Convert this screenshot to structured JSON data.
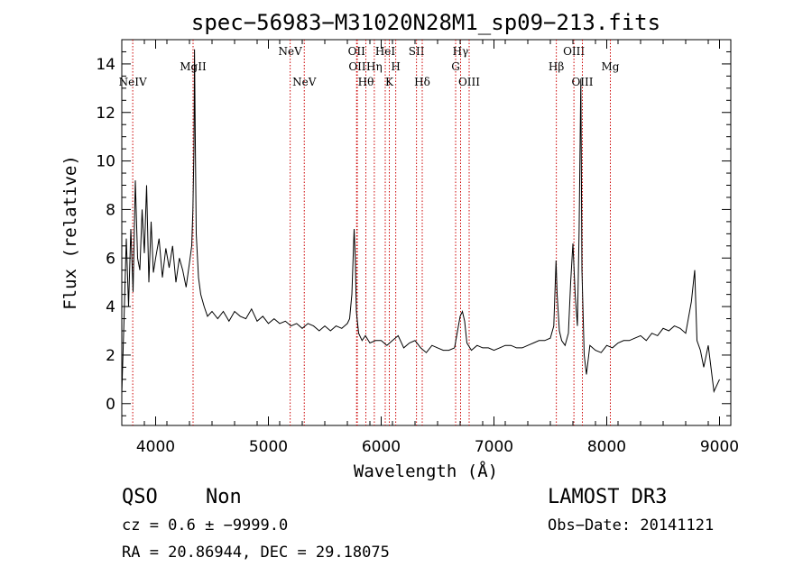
{
  "chart_data": {
    "type": "line",
    "title": "spec−56983−M31020N28M1_sp09−213.fits",
    "xlabel": "Wavelength (Å)",
    "ylabel": "Flux (relative)",
    "xlim": [
      3700,
      9100
    ],
    "ylim": [
      -0.9,
      15.0
    ],
    "xticks": [
      4000,
      5000,
      6000,
      7000,
      8000,
      9000
    ],
    "xtick_labels": [
      "4000",
      "5000",
      "6000",
      "7000",
      "8000",
      "9000"
    ],
    "yticks": [
      0,
      2,
      4,
      6,
      8,
      10,
      12,
      14
    ],
    "ytick_labels": [
      "0",
      "2",
      "4",
      "6",
      "8",
      "10",
      "12",
      "14"
    ],
    "series": [
      {
        "name": "spectrum",
        "x": [
          3700,
          3720,
          3740,
          3760,
          3780,
          3800,
          3820,
          3840,
          3860,
          3880,
          3900,
          3920,
          3940,
          3960,
          3980,
          4000,
          4030,
          4060,
          4090,
          4120,
          4150,
          4180,
          4210,
          4240,
          4270,
          4300,
          4320,
          4330,
          4340,
          4345,
          4350,
          4360,
          4380,
          4400,
          4430,
          4460,
          4500,
          4550,
          4600,
          4650,
          4700,
          4750,
          4800,
          4850,
          4900,
          4950,
          5000,
          5050,
          5100,
          5150,
          5200,
          5250,
          5300,
          5350,
          5400,
          5450,
          5500,
          5550,
          5600,
          5650,
          5700,
          5720,
          5740,
          5760,
          5770,
          5780,
          5800,
          5830,
          5860,
          5900,
          5950,
          6000,
          6050,
          6100,
          6150,
          6200,
          6250,
          6300,
          6350,
          6400,
          6450,
          6500,
          6550,
          6600,
          6650,
          6700,
          6720,
          6740,
          6760,
          6800,
          6850,
          6900,
          6950,
          7000,
          7050,
          7100,
          7150,
          7200,
          7250,
          7300,
          7350,
          7400,
          7450,
          7500,
          7530,
          7550,
          7560,
          7580,
          7600,
          7630,
          7660,
          7680,
          7700,
          7720,
          7740,
          7755,
          7770,
          7780,
          7800,
          7820,
          7850,
          7900,
          7950,
          8000,
          8050,
          8100,
          8150,
          8200,
          8250,
          8300,
          8350,
          8400,
          8450,
          8500,
          8550,
          8600,
          8650,
          8700,
          8750,
          8780,
          8800,
          8830,
          8860,
          8900,
          8950,
          9000
        ],
        "y": [
          0.4,
          3.5,
          6.8,
          4.0,
          7.2,
          4.6,
          9.2,
          6.0,
          5.5,
          8.0,
          6.2,
          9.0,
          5.0,
          7.5,
          5.4,
          6.0,
          6.8,
          5.2,
          6.4,
          5.6,
          6.5,
          5.0,
          6.0,
          5.5,
          4.8,
          5.8,
          6.5,
          8.0,
          10.5,
          14.6,
          11.5,
          7.0,
          5.2,
          4.5,
          4.0,
          3.6,
          3.8,
          3.5,
          3.8,
          3.4,
          3.8,
          3.6,
          3.5,
          3.9,
          3.4,
          3.6,
          3.3,
          3.5,
          3.3,
          3.4,
          3.2,
          3.3,
          3.1,
          3.3,
          3.2,
          3.0,
          3.2,
          3.0,
          3.2,
          3.1,
          3.3,
          3.5,
          4.5,
          7.2,
          6.0,
          3.8,
          2.9,
          2.6,
          2.8,
          2.5,
          2.6,
          2.6,
          2.4,
          2.6,
          2.8,
          2.3,
          2.5,
          2.6,
          2.3,
          2.1,
          2.4,
          2.3,
          2.2,
          2.2,
          2.3,
          3.6,
          3.8,
          3.4,
          2.5,
          2.2,
          2.4,
          2.3,
          2.3,
          2.2,
          2.3,
          2.4,
          2.4,
          2.3,
          2.3,
          2.4,
          2.5,
          2.6,
          2.6,
          2.7,
          3.2,
          5.9,
          4.5,
          3.0,
          2.6,
          2.4,
          2.9,
          5.0,
          6.6,
          4.5,
          3.2,
          7.2,
          13.4,
          5.5,
          2.0,
          1.2,
          2.4,
          2.2,
          2.1,
          2.4,
          2.3,
          2.5,
          2.6,
          2.6,
          2.7,
          2.8,
          2.6,
          2.9,
          2.8,
          3.1,
          3.0,
          3.2,
          3.1,
          2.9,
          4.2,
          5.5,
          2.6,
          2.2,
          1.5,
          2.4,
          0.5,
          1.0
        ]
      }
    ],
    "line_markers": [
      {
        "label": "NeIV",
        "x": 3797,
        "row": "low"
      },
      {
        "label": "MgII",
        "x": 4332,
        "row": "mid"
      },
      {
        "label": "NeV",
        "x": 5193,
        "row": "top"
      },
      {
        "label": "NeV",
        "x": 5318,
        "row": "low"
      },
      {
        "label": "OII",
        "x": 5782,
        "row": "top"
      },
      {
        "label": "OII",
        "x": 5788,
        "row": "mid"
      },
      {
        "label": "Hθ",
        "x": 5864,
        "row": "low"
      },
      {
        "label": "Hη",
        "x": 5939,
        "row": "mid"
      },
      {
        "label": "HeI",
        "x": 6036,
        "row": "top"
      },
      {
        "label": "K",
        "x": 6072,
        "row": "low"
      },
      {
        "label": "H",
        "x": 6129,
        "row": "mid"
      },
      {
        "label": "SII",
        "x": 6313,
        "row": "top"
      },
      {
        "label": "Hδ",
        "x": 6364,
        "row": "low"
      },
      {
        "label": "G",
        "x": 6660,
        "row": "mid"
      },
      {
        "label": "Hγ",
        "x": 6704,
        "row": "top"
      },
      {
        "label": "OIII",
        "x": 6780,
        "row": "low"
      },
      {
        "label": "Hβ",
        "x": 7553,
        "row": "mid"
      },
      {
        "label": "OIII",
        "x": 7709,
        "row": "top"
      },
      {
        "label": "OIII",
        "x": 7784,
        "row": "low"
      },
      {
        "label": "Mg",
        "x": 8032,
        "row": "mid"
      }
    ]
  },
  "footer": {
    "class_label": "QSO",
    "subclass_label": "Non",
    "redshift_text": "cz = 0.6 ± −9999.0",
    "coords_text": "RA =  20.86944, DEC =  29.18075",
    "survey_label": "LAMOST DR3",
    "obs_date_text": "Obs−Date: 20141121"
  },
  "colors": {
    "axis": "#000000",
    "spectrum": "#000000",
    "marker_line": "#cc0000",
    "background": "#ffffff"
  }
}
